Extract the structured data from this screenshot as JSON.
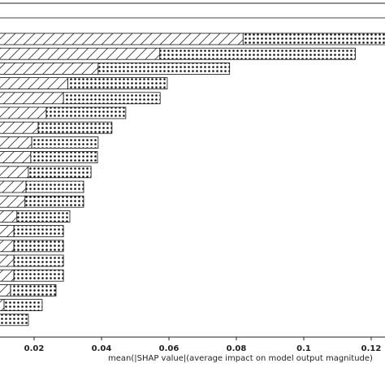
{
  "chart_data": {
    "type": "stacked_barh",
    "xlabel": "mean(|SHAP value|(average impact on model output magnitude)",
    "categories": [
      null,
      null,
      null,
      null,
      null,
      null,
      null,
      null,
      null,
      null,
      null,
      null,
      null,
      null,
      null,
      null,
      null,
      null,
      null,
      null
    ],
    "series": [
      {
        "color": "#ffffff",
        "hatch": "diagonal",
        "values": [
          0.082,
          0.0573,
          0.039,
          0.03,
          0.0287,
          0.0236,
          0.0212,
          0.0193,
          0.019,
          0.0183,
          0.0176,
          0.0173,
          0.0149,
          0.014,
          0.014,
          0.014,
          0.014,
          0.013,
          0.0111,
          0.009
        ]
      },
      {
        "color": "#ffffff",
        "hatch": "dots",
        "values": [
          0.043,
          0.058,
          0.039,
          0.0295,
          0.0287,
          0.0236,
          0.0219,
          0.0197,
          0.0198,
          0.0186,
          0.0171,
          0.0174,
          0.0157,
          0.0147,
          0.0147,
          0.0147,
          0.0147,
          0.0135,
          0.0113,
          0.0093
        ]
      }
    ],
    "xlim": [
      0.00988,
      0.1241
    ],
    "xticks": [
      0.02,
      0.04,
      0.06,
      0.08,
      0.1,
      0.12
    ]
  }
}
